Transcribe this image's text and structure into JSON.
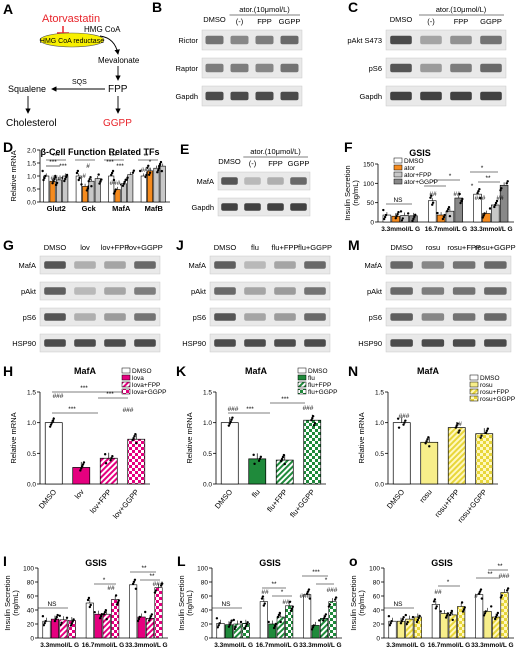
{
  "colors": {
    "accent_red": "#e8242b",
    "hmg_yellow": "#f8f000",
    "orange": "#f58b1e",
    "pink": "#e5007f",
    "green": "#1f8a3b",
    "yellow_light": "#f7ee8a",
    "grey": "#c8c8c8",
    "white": "#ffffff"
  },
  "panels": {
    "A": {
      "letter": "A",
      "atorvastatin": "Atorvastatin",
      "hmgcoa": "HMG CoA",
      "reductase": "HMG CoA reductase",
      "mevalonate": "Mevalonate",
      "sqs": "SQS",
      "fpp": "FPP",
      "squalene": "Squalene",
      "cholesterol": "Cholesterol",
      "ggpp": "GGPP"
    },
    "B": {
      "letter": "B",
      "header": "ator.(10μmol/L)",
      "lanes": [
        "DMSO",
        "(-)",
        "FPP",
        "GGPP"
      ],
      "rows": [
        "Rictor",
        "Raptor",
        "Gapdh"
      ]
    },
    "C": {
      "letter": "C",
      "header": "ator.(10μmol/L)",
      "lanes": [
        "DMSO",
        "(-)",
        "FPP",
        "GGPP"
      ],
      "rows": [
        "pAkt S473",
        "pS6",
        "Gapdh"
      ]
    },
    "D": {
      "letter": "D",
      "title": "β-Cell Function Related TFs",
      "ylabel": "Relative mRNA",
      "categories": [
        "Glut2",
        "Gck",
        "MafA",
        "MafB"
      ],
      "yticks": [
        "0.0",
        "0.5",
        "1.0",
        "1.5",
        "2.0"
      ],
      "sig": [
        "***",
        "***",
        "***",
        "*",
        "#",
        "***",
        "***",
        "***",
        "**",
        "#",
        "*",
        "###",
        "###",
        "###"
      ]
    },
    "E": {
      "letter": "E",
      "header": "ator.(10μmol/L)",
      "lanes": [
        "DMSO",
        "(-)",
        "FPP",
        "GGPP"
      ],
      "rows": [
        "MafA",
        "Gapdh"
      ]
    },
    "F": {
      "letter": "F",
      "title": "GSIS",
      "ylabel": "Insulin Secretion (ng/mL)",
      "legend": [
        "DMSO",
        "ator",
        "ator+FPP",
        "ator+GGPP"
      ],
      "categories": [
        "3.3mmol/L G",
        "16.7mmol/L G",
        "33.3mmol/L G"
      ],
      "yticks": [
        "0",
        "50",
        "100",
        "150"
      ],
      "sig": [
        "NS",
        "*",
        "*",
        "*",
        "**",
        "*",
        "##",
        "##",
        "###",
        "##"
      ]
    },
    "G": {
      "letter": "G",
      "lanes": [
        "DMSO",
        "lov",
        "lov+FPP",
        "lov+GGPP"
      ],
      "rows": [
        "MafA",
        "pAkt",
        "pS6",
        "HSP90"
      ]
    },
    "J": {
      "letter": "J",
      "lanes": [
        "DMSO",
        "flu",
        "flu+FPP",
        "flu+GGPP"
      ],
      "rows": [
        "MafA",
        "pAkt",
        "pS6",
        "HSP90"
      ]
    },
    "M": {
      "letter": "M",
      "lanes": [
        "DMSO",
        "rosu",
        "rosu+FPP",
        "rosu+GGPP"
      ],
      "rows": [
        "MafA",
        "pAkt",
        "pS6",
        "HSP90"
      ]
    },
    "H": {
      "letter": "H",
      "title": "MafA",
      "ylabel": "Relative mRNA",
      "legend": [
        "DMSO",
        "lova",
        "lova+FPP",
        "lova+GGPP"
      ],
      "categories": [
        "DMSO",
        "lov",
        "lov+FPP",
        "lov+GGPP"
      ],
      "yticks": [
        "0.0",
        "0.5",
        "1.0",
        "1.5"
      ],
      "sig": [
        "***",
        "***",
        "***",
        "###",
        "###"
      ]
    },
    "K": {
      "letter": "K",
      "title": "MafA",
      "ylabel": "Relative mRNA",
      "legend": [
        "DMSO",
        "flu",
        "flu+FPP",
        "flu+GGPP"
      ],
      "categories": [
        "DMSO",
        "flu",
        "flu+FPP",
        "flu+GGPP"
      ],
      "yticks": [
        "0.0",
        "0.5",
        "1.0",
        "1.5"
      ],
      "sig": [
        "***",
        "***",
        "###",
        "###"
      ]
    },
    "N": {
      "letter": "N",
      "title": "MafA",
      "ylabel": "Relative mRNA",
      "legend": [
        "DMSO",
        "rosu",
        "rosu+FPP",
        "rosu+GGPP"
      ],
      "categories": [
        "DMSO",
        "rosu",
        "rosu+FPP",
        "rosu+GGPP"
      ],
      "yticks": [
        "0.0",
        "0.5",
        "1.0",
        "1.5"
      ],
      "sig": [
        "###",
        "#"
      ]
    },
    "I": {
      "letter": "I",
      "title": "GSIS",
      "ylabel": "Insulin Secretion (ng/mL)",
      "categories": [
        "3.3mmol/L G",
        "16.7mmol/L G",
        "33.3mmol/L G"
      ],
      "yticks": [
        "0",
        "20",
        "40",
        "60",
        "80",
        "100"
      ],
      "sig": [
        "NS",
        "*",
        "**",
        "**",
        "##",
        "###"
      ]
    },
    "L": {
      "letter": "L",
      "title": "GSIS",
      "ylabel": "Insulin Secretion (ng/mL)",
      "categories": [
        "3.3mmol/L G",
        "16.7mmol/L G",
        "33.3mmol/L G"
      ],
      "yticks": [
        "0",
        "20",
        "40",
        "60",
        "80",
        "100"
      ],
      "sig": [
        "NS",
        "**",
        "*",
        "***",
        "*",
        "##",
        "###",
        "##",
        "###"
      ]
    },
    "O": {
      "letter": "o",
      "title": "GSIS",
      "ylabel": "Insulin Secretion (ng/mL)",
      "categories": [
        "3.3mmol/L G",
        "16.7mmol/L G",
        "33.3mmol/L G"
      ],
      "yticks": [
        "0",
        "20",
        "40",
        "60",
        "80",
        "100"
      ],
      "sig": [
        "NS",
        "*",
        "**",
        "**",
        "##",
        "#",
        "###"
      ]
    }
  },
  "chart_data": [
    {
      "id": "D",
      "type": "bar",
      "title": "β-Cell Function Related TFs",
      "ylabel": "Relative mRNA",
      "categories": [
        "Glut2",
        "Gck",
        "MafA",
        "MafB"
      ],
      "ylim": [
        0,
        2.0
      ],
      "series": [
        {
          "name": "DMSO",
          "values": [
            1.0,
            1.0,
            1.0,
            1.0
          ]
        },
        {
          "name": "ator",
          "values": [
            0.8,
            0.6,
            0.48,
            1.2
          ]
        },
        {
          "name": "ator+FPP",
          "values": [
            0.85,
            0.8,
            0.7,
            1.3
          ]
        },
        {
          "name": "ator+GGPP",
          "values": [
            1.0,
            0.9,
            1.05,
            1.38
          ]
        }
      ]
    },
    {
      "id": "F",
      "type": "bar",
      "title": "GSIS",
      "ylabel": "Insulin Secretion (ng/mL)",
      "categories": [
        "3.3mmol/L G",
        "16.7mmol/L G",
        "33.3mmol/L G"
      ],
      "ylim": [
        0,
        150
      ],
      "series": [
        {
          "name": "DMSO",
          "values": [
            18,
            55,
            72
          ]
        },
        {
          "name": "ator",
          "values": [
            15,
            18,
            22
          ]
        },
        {
          "name": "ator+FPP",
          "values": [
            17,
            28,
            44
          ]
        },
        {
          "name": "ator+GGPP",
          "values": [
            16,
            62,
            95
          ]
        }
      ]
    },
    {
      "id": "H",
      "type": "bar",
      "title": "MafA",
      "ylabel": "Relative mRNA",
      "categories": [
        "DMSO",
        "lov",
        "lov+FPP",
        "lov+GGPP"
      ],
      "ylim": [
        0,
        1.5
      ],
      "series": [
        {
          "name": "",
          "values": [
            1.0,
            0.27,
            0.42,
            0.73
          ]
        }
      ]
    },
    {
      "id": "K",
      "type": "bar",
      "title": "MafA",
      "ylabel": "Relative mRNA",
      "categories": [
        "DMSO",
        "flu",
        "flu+FPP",
        "flu+GGPP"
      ],
      "ylim": [
        0,
        1.5
      ],
      "series": [
        {
          "name": "",
          "values": [
            1.0,
            0.41,
            0.39,
            1.04
          ]
        }
      ]
    },
    {
      "id": "N",
      "type": "bar",
      "title": "MafA",
      "ylabel": "Relative mRNA",
      "categories": [
        "DMSO",
        "rosu",
        "rosu+FPP",
        "rosu+GGPP"
      ],
      "ylim": [
        0,
        1.5
      ],
      "series": [
        {
          "name": "",
          "values": [
            1.0,
            0.68,
            0.92,
            0.82
          ]
        }
      ]
    },
    {
      "id": "I",
      "type": "bar",
      "title": "GSIS",
      "ylabel": "Insulin Secretion (ng/mL)",
      "categories": [
        "3.3mmol/L G",
        "16.7mmol/L G",
        "33.3mmol/L G"
      ],
      "ylim": [
        0,
        100
      ],
      "series": [
        {
          "name": "DMSO",
          "values": [
            24,
            50,
            76
          ]
        },
        {
          "name": "lova",
          "values": [
            27,
            34,
            30
          ]
        },
        {
          "name": "lova+FPP",
          "values": [
            26,
            34,
            28
          ]
        },
        {
          "name": "lova+GGPP",
          "values": [
            25,
            55,
            72
          ]
        }
      ]
    },
    {
      "id": "L",
      "type": "bar",
      "title": "GSIS",
      "ylabel": "Insulin Secretion (ng/mL)",
      "categories": [
        "3.3mmol/L G",
        "16.7mmol/L G",
        "33.3mmol/L G"
      ],
      "ylim": [
        0,
        100
      ],
      "series": [
        {
          "name": "DMSO",
          "values": [
            21,
            52,
            62
          ]
        },
        {
          "name": "flu",
          "values": [
            19,
            20,
            18
          ]
        },
        {
          "name": "flu+FPP",
          "values": [
            20,
            30,
            28
          ]
        },
        {
          "name": "flu+GGPP",
          "values": [
            21,
            46,
            52
          ]
        }
      ]
    },
    {
      "id": "O",
      "type": "bar",
      "title": "GSIS",
      "ylabel": "Insulin Secretion (ng/mL)",
      "categories": [
        "3.3mmol/L G",
        "16.7mmol/L G",
        "33.3mmol/L G"
      ],
      "ylim": [
        0,
        100
      ],
      "series": [
        {
          "name": "DMSO",
          "values": [
            24,
            48,
            62
          ]
        },
        {
          "name": "rosu",
          "values": [
            24,
            35,
            38
          ]
        },
        {
          "name": "rosu+FPP",
          "values": [
            27,
            33,
            30
          ]
        },
        {
          "name": "rosu+GGPP",
          "values": [
            30,
            45,
            65
          ]
        }
      ]
    }
  ]
}
